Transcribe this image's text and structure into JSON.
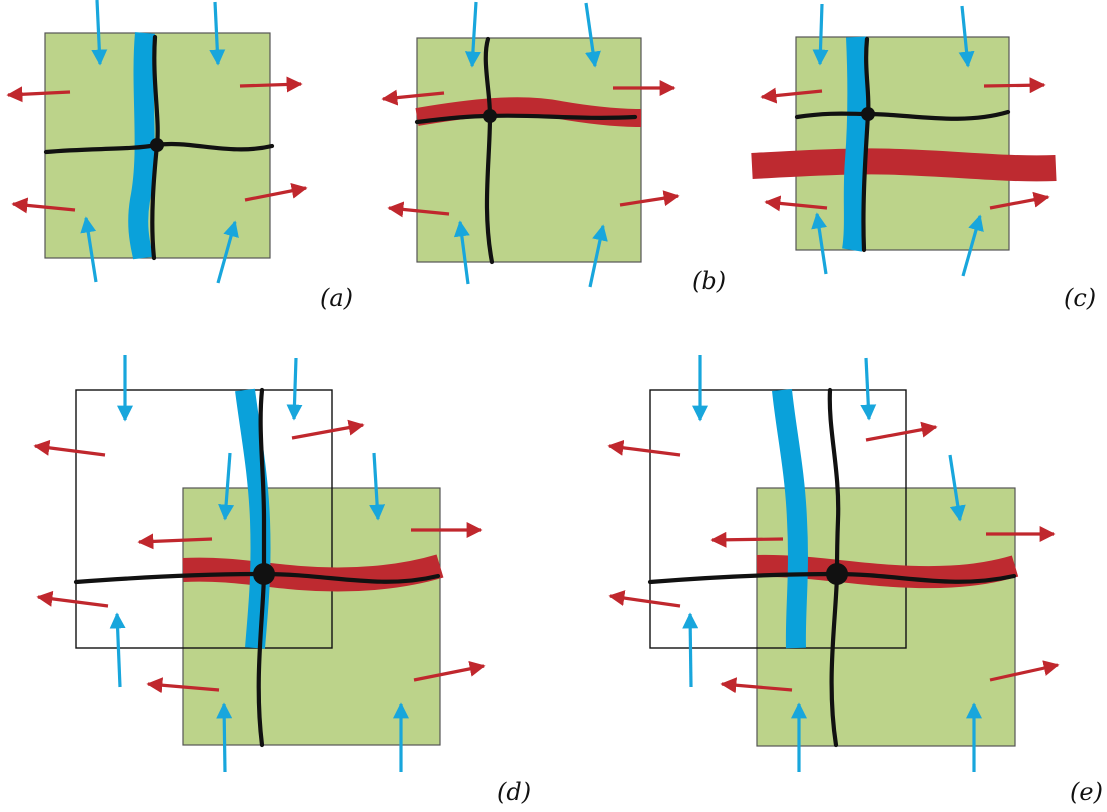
{
  "colors": {
    "green_region": "#bcd38a",
    "blue_band": "#0aa1da",
    "red_band": "#be2a30",
    "blue_arrow": "#18a6dc",
    "red_arrow": "#c0272d",
    "trajectory": "#111111"
  },
  "panels": [
    {
      "id": "a",
      "label": "(a)"
    },
    {
      "id": "b",
      "label": "(b)"
    },
    {
      "id": "c",
      "label": "(c)"
    },
    {
      "id": "d",
      "label": "(d)"
    },
    {
      "id": "e",
      "label": "(e)"
    }
  ]
}
